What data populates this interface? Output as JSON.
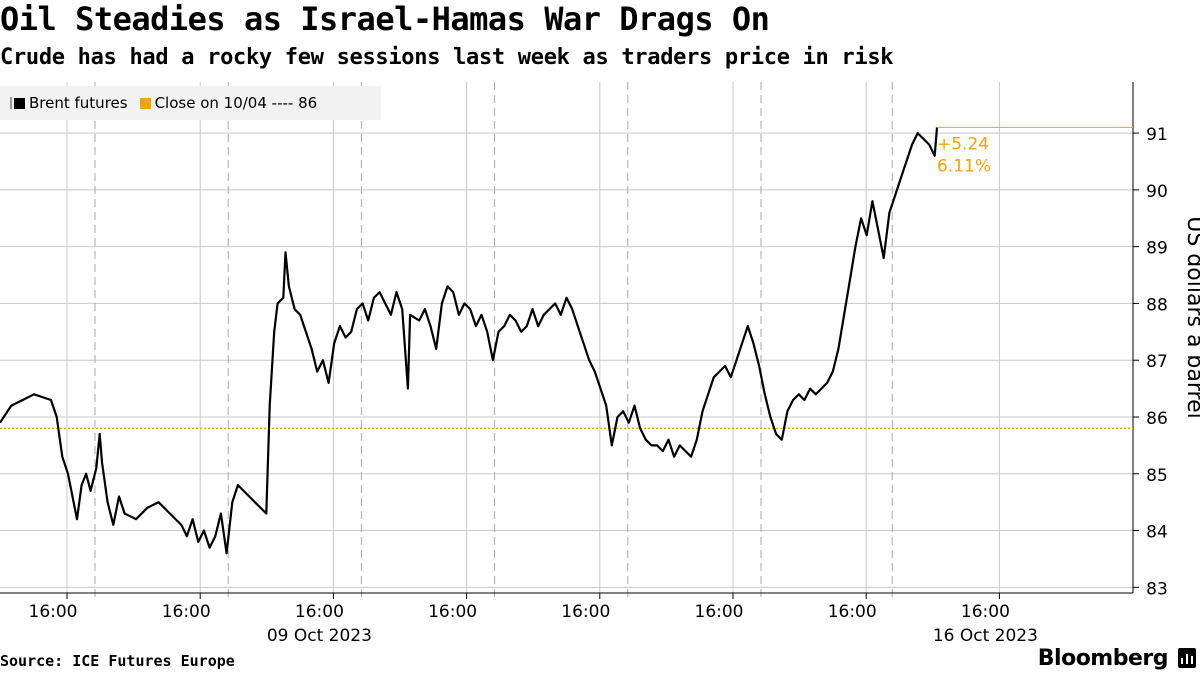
{
  "header": {
    "title": "Oil Steadies as Israel-Hamas War Drags On",
    "subtitle": "Crude has had a rocky few sessions last week as traders price in risk"
  },
  "footer": {
    "source": "Source: ICE Futures Europe",
    "brand": "Bloomberg",
    "brand_icon": "bar-chart-icon"
  },
  "colors": {
    "series": "#000000",
    "reference": "#f0a30a",
    "grid": "#c8c8c8",
    "legend_bg": "#f2f2f2"
  },
  "chart_data": {
    "type": "line",
    "ylabel": "US dollars a barrel",
    "ylim": [
      82.9,
      91.9
    ],
    "y_ticks": [
      83,
      84,
      85,
      86,
      87,
      88,
      89,
      90,
      91
    ],
    "x_tick_labels": [
      "16:00",
      "16:00",
      "16:00",
      "16:00",
      "16:00",
      "16:00",
      "16:00",
      "16:00"
    ],
    "x_date_labels": [
      {
        "label": "09 Oct 2023",
        "tick": 2
      },
      {
        "label": "16 Oct 2023",
        "tick": 7
      }
    ],
    "session_breaks": 7,
    "legend": {
      "placement": "top-left",
      "series_label": "Brent futures",
      "reference_label": "Close on 10/04 ---- 86"
    },
    "reference_line": {
      "value": 85.8
    },
    "annotation": {
      "change": "+5.24",
      "percent": "6.11%"
    },
    "series": [
      {
        "name": "Brent futures",
        "points": [
          [
            0,
            85.9
          ],
          [
            0.01,
            86.2
          ],
          [
            0.02,
            86.3
          ],
          [
            0.03,
            86.4
          ],
          [
            0.045,
            86.3
          ],
          [
            0.05,
            86.0
          ],
          [
            0.055,
            85.3
          ],
          [
            0.06,
            85.0
          ],
          [
            0.065,
            84.5
          ],
          [
            0.068,
            84.2
          ],
          [
            0.072,
            84.8
          ],
          [
            0.076,
            85.0
          ],
          [
            0.08,
            84.7
          ],
          [
            0.085,
            85.1
          ],
          [
            0.088,
            85.7
          ],
          [
            0.09,
            85.2
          ],
          [
            0.095,
            84.5
          ],
          [
            0.1,
            84.1
          ],
          [
            0.105,
            84.6
          ],
          [
            0.11,
            84.3
          ],
          [
            0.12,
            84.2
          ],
          [
            0.13,
            84.4
          ],
          [
            0.14,
            84.5
          ],
          [
            0.15,
            84.3
          ],
          [
            0.16,
            84.1
          ],
          [
            0.165,
            83.9
          ],
          [
            0.17,
            84.2
          ],
          [
            0.175,
            83.8
          ],
          [
            0.18,
            84.0
          ],
          [
            0.185,
            83.7
          ],
          [
            0.19,
            83.9
          ],
          [
            0.195,
            84.3
          ],
          [
            0.2,
            83.6
          ],
          [
            0.205,
            84.5
          ],
          [
            0.21,
            84.8
          ],
          [
            0.22,
            84.6
          ],
          [
            0.225,
            84.5
          ],
          [
            0.23,
            84.4
          ],
          [
            0.235,
            84.3
          ],
          [
            0.238,
            86.2
          ],
          [
            0.242,
            87.5
          ],
          [
            0.245,
            88.0
          ],
          [
            0.25,
            88.1
          ],
          [
            0.252,
            88.9
          ],
          [
            0.255,
            88.3
          ],
          [
            0.26,
            87.9
          ],
          [
            0.265,
            87.8
          ],
          [
            0.27,
            87.5
          ],
          [
            0.275,
            87.2
          ],
          [
            0.28,
            86.8
          ],
          [
            0.285,
            87.0
          ],
          [
            0.29,
            86.6
          ],
          [
            0.295,
            87.3
          ],
          [
            0.3,
            87.6
          ],
          [
            0.305,
            87.4
          ],
          [
            0.31,
            87.5
          ],
          [
            0.315,
            87.9
          ],
          [
            0.32,
            88.0
          ],
          [
            0.325,
            87.7
          ],
          [
            0.33,
            88.1
          ],
          [
            0.335,
            88.2
          ],
          [
            0.34,
            88.0
          ],
          [
            0.345,
            87.8
          ],
          [
            0.35,
            88.2
          ],
          [
            0.355,
            87.9
          ],
          [
            0.36,
            86.5
          ],
          [
            0.362,
            87.8
          ],
          [
            0.37,
            87.7
          ],
          [
            0.375,
            87.9
          ],
          [
            0.38,
            87.6
          ],
          [
            0.385,
            87.2
          ],
          [
            0.39,
            88.0
          ],
          [
            0.395,
            88.3
          ],
          [
            0.4,
            88.2
          ],
          [
            0.405,
            87.8
          ],
          [
            0.41,
            88.0
          ],
          [
            0.415,
            87.9
          ],
          [
            0.42,
            87.6
          ],
          [
            0.425,
            87.8
          ],
          [
            0.43,
            87.5
          ],
          [
            0.435,
            87.0
          ],
          [
            0.44,
            87.5
          ],
          [
            0.445,
            87.6
          ],
          [
            0.45,
            87.8
          ],
          [
            0.455,
            87.7
          ],
          [
            0.46,
            87.5
          ],
          [
            0.465,
            87.6
          ],
          [
            0.47,
            87.9
          ],
          [
            0.475,
            87.6
          ],
          [
            0.48,
            87.8
          ],
          [
            0.485,
            87.9
          ],
          [
            0.49,
            88.0
          ],
          [
            0.495,
            87.8
          ],
          [
            0.5,
            88.1
          ],
          [
            0.505,
            87.9
          ],
          [
            0.51,
            87.6
          ],
          [
            0.515,
            87.3
          ],
          [
            0.52,
            87.0
          ],
          [
            0.525,
            86.8
          ],
          [
            0.53,
            86.5
          ],
          [
            0.535,
            86.2
          ],
          [
            0.54,
            85.5
          ],
          [
            0.545,
            86.0
          ],
          [
            0.55,
            86.1
          ],
          [
            0.555,
            85.9
          ],
          [
            0.56,
            86.2
          ],
          [
            0.565,
            85.8
          ],
          [
            0.57,
            85.6
          ],
          [
            0.575,
            85.5
          ],
          [
            0.58,
            85.5
          ],
          [
            0.585,
            85.4
          ],
          [
            0.59,
            85.6
          ],
          [
            0.595,
            85.3
          ],
          [
            0.6,
            85.5
          ],
          [
            0.605,
            85.4
          ],
          [
            0.61,
            85.3
          ],
          [
            0.615,
            85.6
          ],
          [
            0.62,
            86.1
          ],
          [
            0.625,
            86.4
          ],
          [
            0.63,
            86.7
          ],
          [
            0.635,
            86.8
          ],
          [
            0.64,
            86.9
          ],
          [
            0.645,
            86.7
          ],
          [
            0.65,
            87.0
          ],
          [
            0.655,
            87.3
          ],
          [
            0.66,
            87.6
          ],
          [
            0.665,
            87.3
          ],
          [
            0.67,
            86.9
          ],
          [
            0.675,
            86.4
          ],
          [
            0.68,
            86.0
          ],
          [
            0.685,
            85.7
          ],
          [
            0.69,
            85.6
          ],
          [
            0.695,
            86.1
          ],
          [
            0.7,
            86.3
          ],
          [
            0.705,
            86.4
          ],
          [
            0.71,
            86.3
          ],
          [
            0.715,
            86.5
          ],
          [
            0.72,
            86.4
          ],
          [
            0.725,
            86.5
          ],
          [
            0.73,
            86.6
          ],
          [
            0.735,
            86.8
          ],
          [
            0.74,
            87.2
          ],
          [
            0.745,
            87.8
          ],
          [
            0.75,
            88.4
          ],
          [
            0.755,
            89.0
          ],
          [
            0.76,
            89.5
          ],
          [
            0.765,
            89.2
          ],
          [
            0.77,
            89.8
          ],
          [
            0.775,
            89.3
          ],
          [
            0.78,
            88.8
          ],
          [
            0.785,
            89.6
          ],
          [
            0.79,
            89.9
          ],
          [
            0.795,
            90.2
          ],
          [
            0.8,
            90.5
          ],
          [
            0.805,
            90.8
          ],
          [
            0.81,
            91.0
          ],
          [
            0.815,
            90.9
          ],
          [
            0.82,
            90.8
          ],
          [
            0.825,
            90.6
          ],
          [
            0.827,
            91.1
          ]
        ]
      }
    ]
  }
}
